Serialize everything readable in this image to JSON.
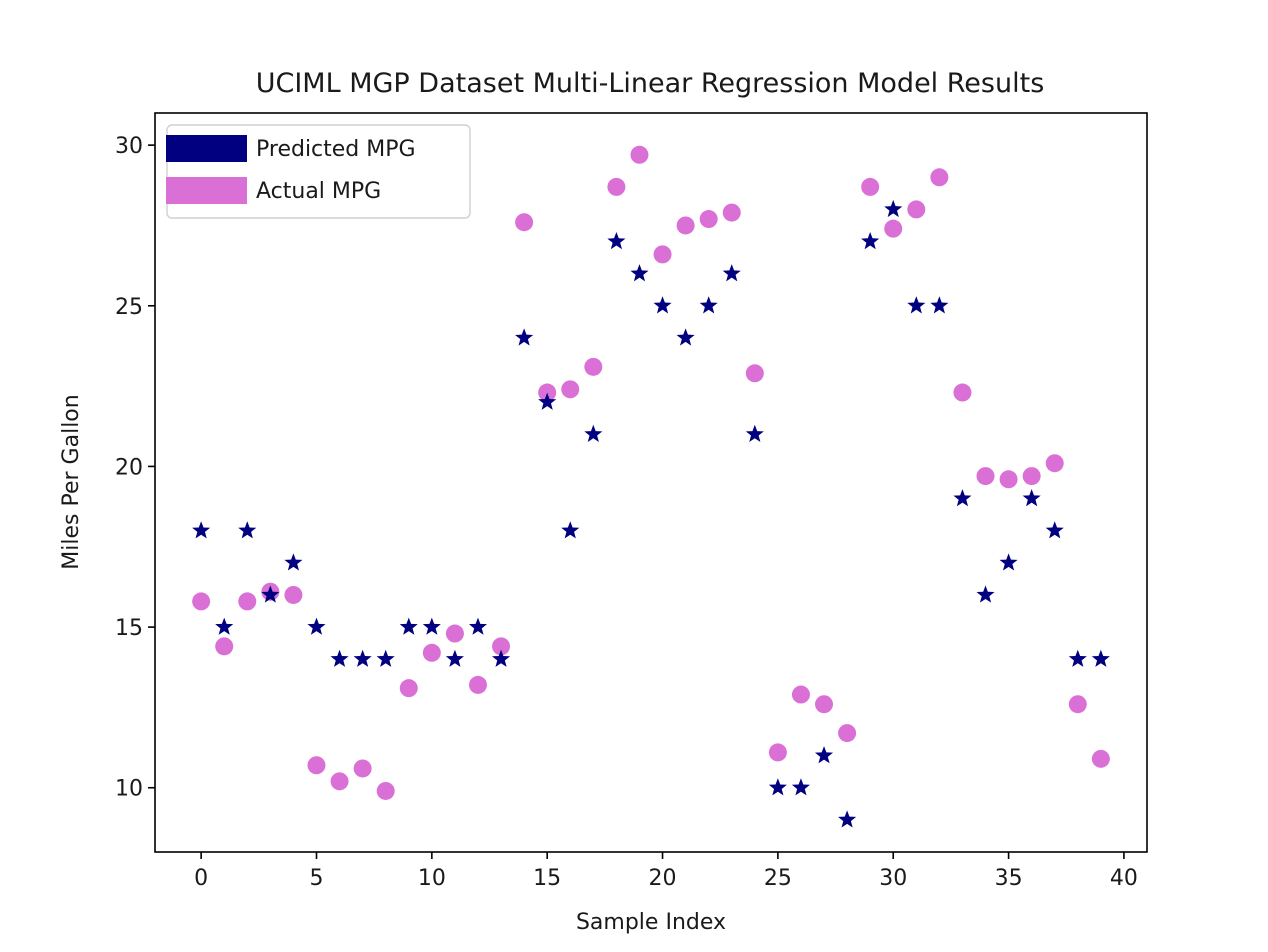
{
  "chart_data": {
    "type": "scatter",
    "title": "UCIML MGP Dataset Multi-Linear Regression Model Results",
    "xlabel": "Sample Index",
    "ylabel": "Miles Per Gallon",
    "xlim": [
      -2,
      41
    ],
    "ylim": [
      8,
      31
    ],
    "xticks": [
      0,
      5,
      10,
      15,
      20,
      25,
      30,
      35,
      40
    ],
    "yticks": [
      10,
      15,
      20,
      25,
      30
    ],
    "grid": false,
    "legend_position": "upper-left",
    "series": [
      {
        "name": "Predicted MPG",
        "marker": "star",
        "color": "#000080",
        "x": [
          0,
          1,
          2,
          3,
          4,
          5,
          6,
          7,
          8,
          9,
          10,
          11,
          12,
          13,
          14,
          15,
          16,
          17,
          18,
          19,
          20,
          21,
          22,
          23,
          24,
          25,
          26,
          27,
          28,
          29,
          30,
          31,
          32,
          33,
          34,
          35,
          36,
          37,
          38,
          39
        ],
        "values": [
          18,
          15,
          18,
          16,
          17,
          15,
          14,
          14,
          14,
          15,
          15,
          14,
          15,
          14,
          24,
          22,
          18,
          21,
          27,
          26,
          25,
          24,
          25,
          26,
          21,
          10,
          10,
          11,
          9,
          27,
          28,
          25,
          25,
          19,
          16,
          17,
          19,
          18,
          14,
          14
        ]
      },
      {
        "name": "Actual MPG",
        "marker": "circle",
        "color": "#da70d6",
        "x": [
          0,
          1,
          2,
          3,
          4,
          5,
          6,
          7,
          8,
          9,
          10,
          11,
          12,
          13,
          14,
          15,
          16,
          17,
          18,
          19,
          20,
          21,
          22,
          23,
          24,
          25,
          26,
          27,
          28,
          29,
          30,
          31,
          32,
          33,
          34,
          35,
          36,
          37,
          38,
          39
        ],
        "values": [
          15.8,
          14.4,
          15.8,
          16.1,
          16.0,
          10.7,
          10.2,
          10.6,
          9.9,
          13.1,
          14.2,
          14.8,
          13.2,
          14.4,
          27.6,
          22.3,
          22.4,
          23.1,
          28.7,
          29.7,
          26.6,
          27.5,
          27.7,
          27.9,
          22.9,
          11.1,
          12.9,
          12.6,
          11.7,
          28.7,
          27.4,
          28.0,
          29.0,
          22.3,
          19.7,
          19.6,
          19.7,
          20.1,
          12.6,
          10.9
        ]
      }
    ]
  }
}
